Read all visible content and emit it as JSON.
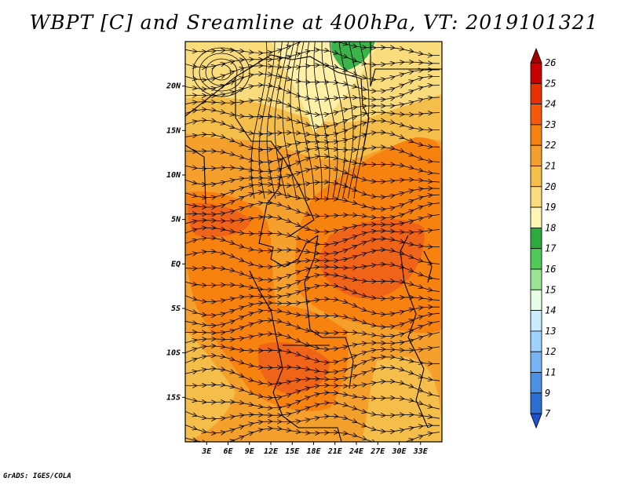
{
  "title": "WBPT [C] and Sreamline at 400hPa, VT: 2019101321",
  "credit": "GrADS: IGES/COLA",
  "map": {
    "lon_range": [
      0,
      36
    ],
    "lat_range": [
      -20,
      25
    ],
    "lon_ticks": [
      "3E",
      "6E",
      "9E",
      "12E",
      "15E",
      "18E",
      "21E",
      "24E",
      "27E",
      "30E",
      "33E"
    ],
    "lon_tick_values": [
      3,
      6,
      9,
      12,
      15,
      18,
      21,
      24,
      27,
      30,
      33
    ],
    "lat_ticks": [
      "20N",
      "15N",
      "10N",
      "5N",
      "EQ",
      "5S",
      "10S",
      "15S"
    ],
    "lat_tick_values": [
      20,
      15,
      10,
      5,
      0,
      -5,
      -10,
      -15
    ]
  },
  "colorbar": {
    "labels": [
      "26",
      "25",
      "24",
      "23",
      "22",
      "21",
      "20",
      "19",
      "18",
      "17",
      "16",
      "15",
      "14",
      "13",
      "12",
      "11",
      "9",
      "7"
    ],
    "colors": [
      "#a50000",
      "#c80000",
      "#e63200",
      "#f55a0a",
      "#f8820f",
      "#f5a02d",
      "#f5be4b",
      "#fadc7d",
      "#fff5b4",
      "#2daa3c",
      "#50c85a",
      "#9be696",
      "#e6ffe6",
      "#cdebff",
      "#a0d2ff",
      "#78b4f5",
      "#4b91e6",
      "#2d6ed2",
      "#1e50c8"
    ]
  }
}
